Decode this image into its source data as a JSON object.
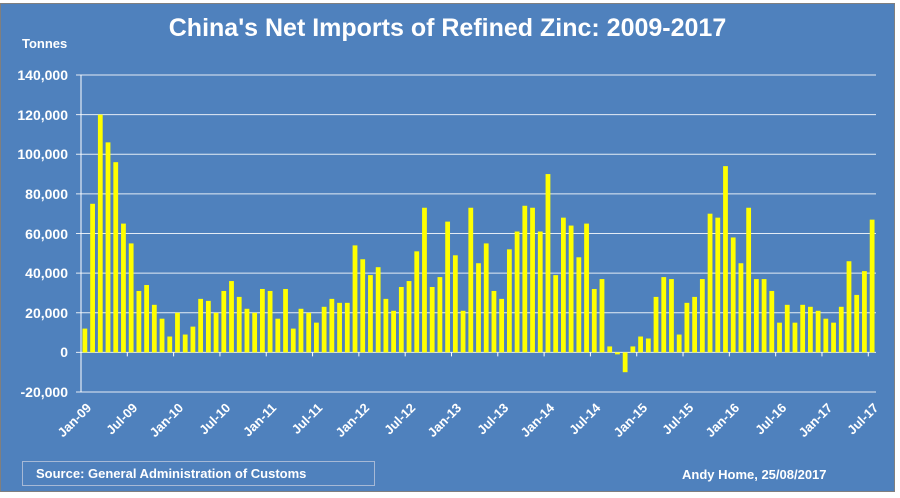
{
  "chart": {
    "title": "China's Net Imports of Refined Zinc: 2009-2017",
    "y_unit_label": "Tonnes",
    "source": "Source: General  Administration  of Customs",
    "author": "Andy Home, 25/08/2017",
    "colors": {
      "background": "#4f81bd",
      "bar": "#ffff00",
      "grid": "#ffffff",
      "text": "#ffffff"
    }
  },
  "chart_data": {
    "type": "bar",
    "title": "China's Net Imports of Refined Zinc: 2009-2017",
    "xlabel": "",
    "ylabel": "Tonnes",
    "ylim": [
      -20000,
      140000
    ],
    "yticks": [
      "140,000",
      "120,000",
      "100,000",
      "80,000",
      "60,000",
      "40,000",
      "20,000",
      "0",
      "-20,000"
    ],
    "ytick_values": [
      140000,
      120000,
      100000,
      80000,
      60000,
      40000,
      20000,
      0,
      -20000
    ],
    "xtick_labels": [
      "Jan-09",
      "Jul-09",
      "Jan-10",
      "Jul-10",
      "Jan-11",
      "Jul-11",
      "Jan-12",
      "Jul-12",
      "Jan-13",
      "Jul-13",
      "Jan-14",
      "Jul-14",
      "Jan-15",
      "Jul-15",
      "Jan-16",
      "Jul-16",
      "Jan-17",
      "Jul-17"
    ],
    "grid": true,
    "legend": null,
    "start_month": "Jan-09",
    "end_month": "Jul-17",
    "values": [
      12000,
      75000,
      120000,
      106000,
      96000,
      65000,
      55000,
      31000,
      34000,
      24000,
      17000,
      8000,
      20000,
      9000,
      13000,
      27000,
      26000,
      20000,
      31000,
      36000,
      28000,
      22000,
      20000,
      32000,
      31000,
      17000,
      32000,
      12000,
      22000,
      20000,
      15000,
      23000,
      27000,
      25000,
      25000,
      54000,
      47000,
      39000,
      43000,
      27000,
      21000,
      33000,
      36000,
      51000,
      73000,
      33000,
      38000,
      66000,
      49000,
      21000,
      73000,
      45000,
      55000,
      31000,
      27000,
      52000,
      61000,
      74000,
      73000,
      61000,
      90000,
      39000,
      68000,
      64000,
      48000,
      65000,
      32000,
      37000,
      3000,
      -1000,
      -10000,
      3000,
      8000,
      7000,
      28000,
      38000,
      37000,
      9000,
      25000,
      28000,
      37000,
      70000,
      68000,
      94000,
      58000,
      45000,
      73000,
      37000,
      37000,
      31000,
      15000,
      24000,
      15000,
      24000,
      23000,
      21000,
      17000,
      15000,
      23000,
      46000,
      29000,
      41000,
      67000
    ]
  }
}
